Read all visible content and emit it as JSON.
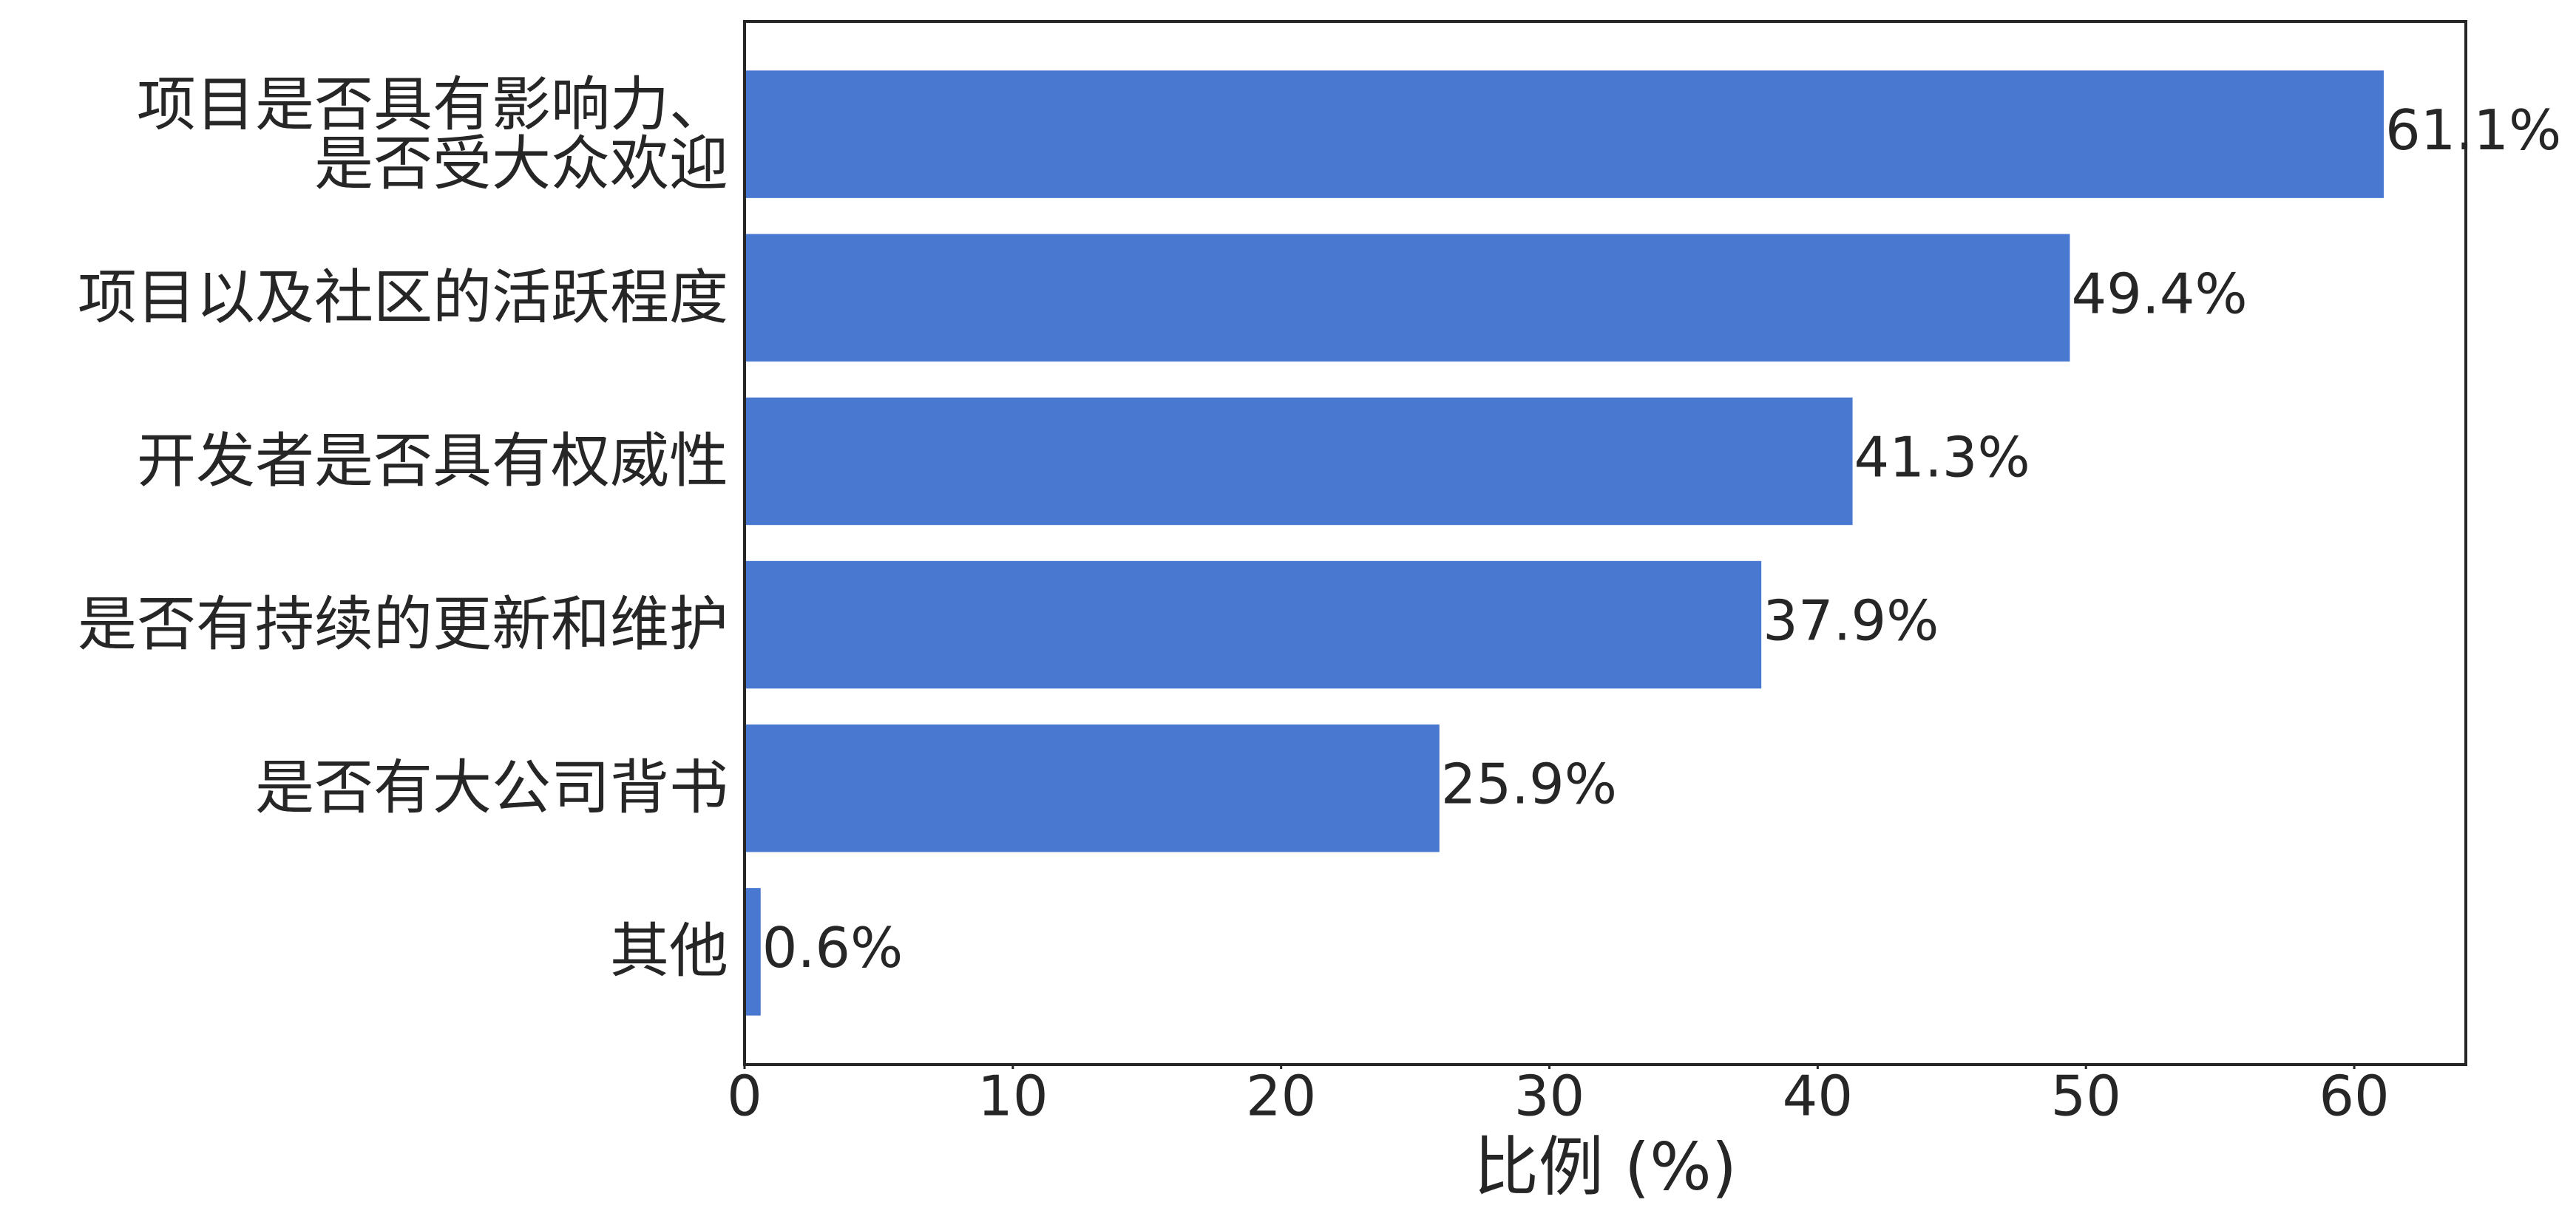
{
  "chart_data": {
    "type": "barh",
    "categories": [
      "项目是否具有影响力、\n是否受大众欢迎",
      "项目以及社区的活跃程度",
      "开发者是否具有权威性",
      "是否有持续的更新和维护",
      "是否有大公司背书",
      "其他"
    ],
    "values": [
      61.1,
      49.4,
      41.3,
      37.9,
      25.9,
      0.6
    ],
    "value_labels": [
      "61.1%",
      "49.4%",
      "41.3%",
      "37.9%",
      "25.9%",
      "0.6%"
    ],
    "color": "#4878cf",
    "xlabel": "比例 (%)",
    "xlim": [
      0,
      64.16
    ],
    "xticks": [
      0,
      10,
      20,
      30,
      40,
      50,
      60
    ]
  }
}
